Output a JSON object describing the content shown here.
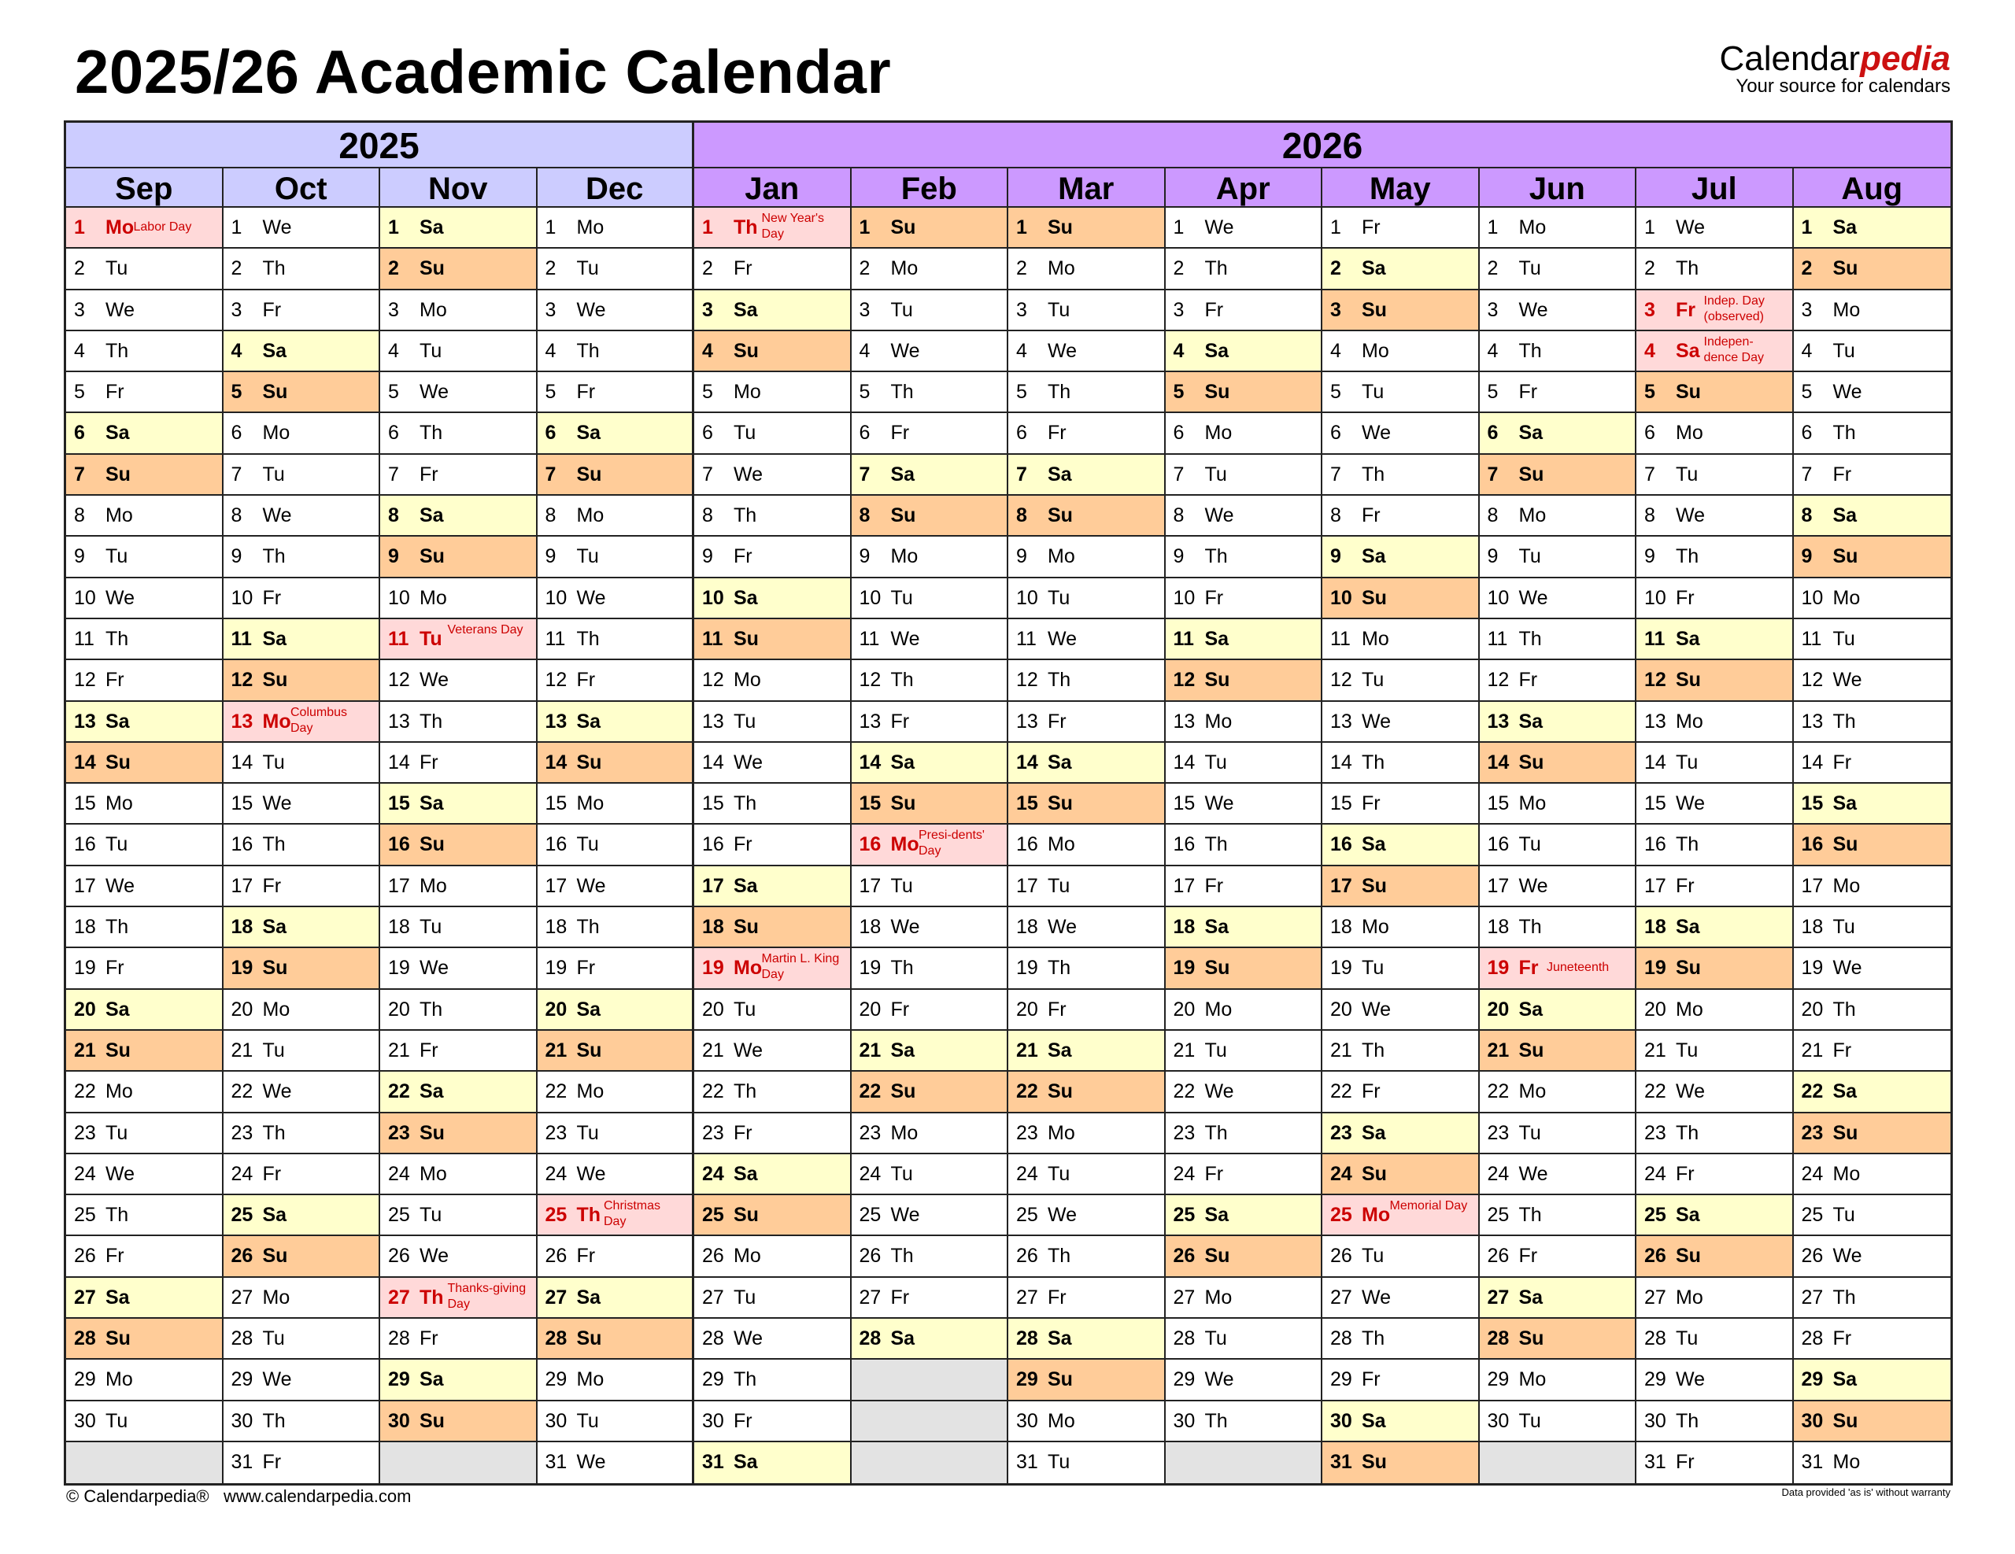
{
  "title": "2025/26 Academic Calendar",
  "logo": {
    "brand_plain": "Calendar",
    "brand_accent": "pedia",
    "tagline": "Your source for calendars"
  },
  "years": [
    "2025",
    "2026"
  ],
  "weekdays": [
    "Mo",
    "Tu",
    "We",
    "Th",
    "Fr",
    "Sa",
    "Su"
  ],
  "months": [
    {
      "name": "Sep",
      "days": 30,
      "start": "Mo",
      "holidays": {
        "1": "Labor Day"
      }
    },
    {
      "name": "Oct",
      "days": 31,
      "start": "We",
      "holidays": {
        "13": "Columbus Day"
      }
    },
    {
      "name": "Nov",
      "days": 30,
      "start": "Sa",
      "holidays": {
        "11": "Veterans Day",
        "27": "Thanks-giving Day"
      }
    },
    {
      "name": "Dec",
      "days": 31,
      "start": "Mo",
      "holidays": {
        "25": "Christmas Day"
      }
    },
    {
      "name": "Jan",
      "days": 31,
      "start": "Th",
      "holidays": {
        "1": "New Year's Day",
        "19": "Martin L. King Day"
      }
    },
    {
      "name": "Feb",
      "days": 28,
      "start": "Su",
      "holidays": {
        "16": "Presi-dents' Day"
      }
    },
    {
      "name": "Mar",
      "days": 31,
      "start": "Su",
      "holidays": {}
    },
    {
      "name": "Apr",
      "days": 30,
      "start": "We",
      "holidays": {}
    },
    {
      "name": "May",
      "days": 31,
      "start": "Fr",
      "holidays": {
        "25": "Memorial Day"
      }
    },
    {
      "name": "Jun",
      "days": 30,
      "start": "Mo",
      "holidays": {
        "19": "Juneteenth"
      }
    },
    {
      "name": "Jul",
      "days": 31,
      "start": "We",
      "holidays": {
        "3": "Indep. Day (observed)",
        "4": "Indepen-dence Day"
      }
    },
    {
      "name": "Aug",
      "days": 31,
      "start": "Sa",
      "holidays": {}
    }
  ],
  "colors": {
    "year_2025": "#ccccff",
    "year_2026": "#cc99ff",
    "saturday": "#ffffcc",
    "sunday": "#ffcc99",
    "holiday": "#ffd9d9",
    "holiday_text": "#cc0000",
    "empty": "#e3e3e3"
  },
  "footer": {
    "copyright": "© Calendarpedia®   www.calendarpedia.com",
    "disclaimer": "Data provided 'as is' without warranty"
  }
}
